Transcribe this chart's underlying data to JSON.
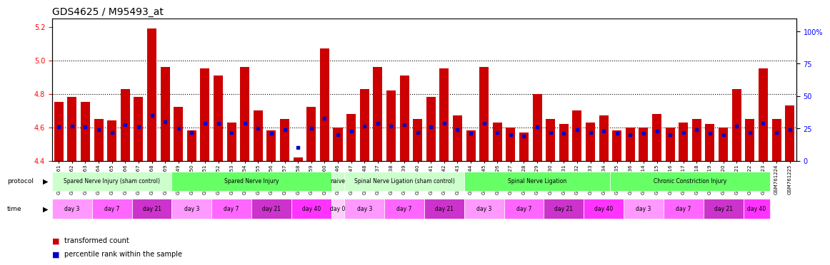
{
  "title": "GDS4625 / M95493_at",
  "samples": [
    "GSM761261",
    "GSM761262",
    "GSM761263",
    "GSM761264",
    "GSM761265",
    "GSM761266",
    "GSM761267",
    "GSM761268",
    "GSM761269",
    "GSM761249",
    "GSM761250",
    "GSM761251",
    "GSM761252",
    "GSM761253",
    "GSM761254",
    "GSM761255",
    "GSM761256",
    "GSM761257",
    "GSM761258",
    "GSM761259",
    "GSM761260",
    "GSM761246",
    "GSM761247",
    "GSM761248",
    "GSM761237",
    "GSM761238",
    "GSM761239",
    "GSM761240",
    "GSM761241",
    "GSM761242",
    "GSM761243",
    "GSM761244",
    "GSM761245",
    "GSM761226",
    "GSM761227",
    "GSM761228",
    "GSM761229",
    "GSM761230",
    "GSM761231",
    "GSM761232",
    "GSM761233",
    "GSM761234",
    "GSM761235",
    "GSM761236",
    "GSM761214",
    "GSM761215",
    "GSM761216",
    "GSM761217",
    "GSM761218",
    "GSM761219",
    "GSM761220",
    "GSM761221",
    "GSM761222",
    "GSM761223",
    "GSM761224",
    "GSM761225"
  ],
  "bar_values": [
    4.75,
    4.78,
    4.75,
    4.65,
    4.64,
    4.83,
    4.78,
    5.19,
    4.96,
    4.72,
    4.58,
    4.95,
    4.91,
    4.63,
    4.96,
    4.7,
    4.58,
    4.65,
    4.42,
    4.72,
    5.07,
    4.6,
    4.68,
    4.83,
    4.96,
    4.82,
    4.91,
    4.65,
    4.78,
    4.95,
    4.67,
    4.58,
    4.96,
    4.63,
    4.6,
    4.57,
    4.8,
    4.65,
    4.62,
    4.7,
    4.63,
    4.67,
    4.58,
    4.6,
    4.6,
    4.68,
    4.6,
    4.63,
    4.65,
    4.62,
    4.6,
    4.83,
    4.65,
    4.95,
    4.65,
    4.73
  ],
  "percentile_values": [
    26,
    27,
    26,
    24,
    22,
    28,
    26,
    35,
    30,
    25,
    22,
    29,
    29,
    22,
    29,
    25,
    21,
    24,
    10,
    25,
    33,
    20,
    23,
    27,
    29,
    27,
    28,
    22,
    26,
    29,
    24,
    21,
    29,
    22,
    20,
    19,
    26,
    22,
    21,
    24,
    22,
    23,
    21,
    20,
    21,
    23,
    20,
    22,
    24,
    21,
    20,
    27,
    22,
    29,
    22,
    24
  ],
  "ylim_left": [
    4.4,
    5.25
  ],
  "ylim_right": [
    0,
    110
  ],
  "yticks_left": [
    4.4,
    4.6,
    4.8,
    5.0,
    5.2
  ],
  "yticks_right": [
    0,
    25,
    50,
    75,
    100
  ],
  "ytick_right_labels": [
    "0",
    "25",
    "50",
    "75",
    "100%"
  ],
  "hlines": [
    4.6,
    4.8,
    5.0
  ],
  "bar_color": "#cc0000",
  "blue_color": "#0000cc",
  "protocols": [
    {
      "label": "Spared Nerve Injury (sham control)",
      "start": 0,
      "end": 9,
      "color": "#ccffcc"
    },
    {
      "label": "Spared Nerve Injury",
      "start": 9,
      "end": 21,
      "color": "#66ff66"
    },
    {
      "label": "naive",
      "start": 21,
      "end": 22,
      "color": "#ccffcc"
    },
    {
      "label": "Spinal Nerve Ligation (sham control)",
      "start": 22,
      "end": 31,
      "color": "#ccffcc"
    },
    {
      "label": "Spinal Nerve Ligation",
      "start": 31,
      "end": 42,
      "color": "#66ff66"
    },
    {
      "label": "Chronic Constriction Injury",
      "start": 42,
      "end": 54,
      "color": "#66ff66"
    }
  ],
  "time_groups": [
    {
      "label": "day 3",
      "start": 0,
      "end": 3,
      "color": "#ff99ff"
    },
    {
      "label": "day 7",
      "start": 3,
      "end": 6,
      "color": "#ff66ff"
    },
    {
      "label": "day 21",
      "start": 6,
      "end": 9,
      "color": "#cc33cc"
    },
    {
      "label": "day 3",
      "start": 9,
      "end": 12,
      "color": "#ff99ff"
    },
    {
      "label": "day 7",
      "start": 12,
      "end": 15,
      "color": "#ff66ff"
    },
    {
      "label": "day 21",
      "start": 15,
      "end": 18,
      "color": "#cc33cc"
    },
    {
      "label": "day 40",
      "start": 18,
      "end": 21,
      "color": "#ff33ff"
    },
    {
      "label": "day 0",
      "start": 21,
      "end": 22,
      "color": "#ffccff"
    },
    {
      "label": "day 3",
      "start": 22,
      "end": 25,
      "color": "#ff99ff"
    },
    {
      "label": "day 7",
      "start": 25,
      "end": 28,
      "color": "#ff66ff"
    },
    {
      "label": "day 21",
      "start": 28,
      "end": 31,
      "color": "#cc33cc"
    },
    {
      "label": "day 3",
      "start": 31,
      "end": 34,
      "color": "#ff99ff"
    },
    {
      "label": "day 7",
      "start": 34,
      "end": 37,
      "color": "#ff66ff"
    },
    {
      "label": "day 21",
      "start": 37,
      "end": 40,
      "color": "#cc33cc"
    },
    {
      "label": "day 40",
      "start": 40,
      "end": 43,
      "color": "#ff33ff"
    },
    {
      "label": "day 3",
      "start": 43,
      "end": 46,
      "color": "#ff99ff"
    },
    {
      "label": "day 7",
      "start": 46,
      "end": 49,
      "color": "#ff66ff"
    },
    {
      "label": "day 21",
      "start": 49,
      "end": 52,
      "color": "#cc33cc"
    },
    {
      "label": "day 40",
      "start": 52,
      "end": 54,
      "color": "#ff33ff"
    }
  ]
}
